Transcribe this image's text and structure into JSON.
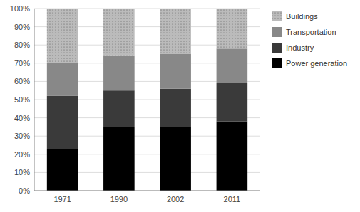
{
  "chart_data": {
    "type": "bar",
    "stacked": true,
    "categories": [
      "1971",
      "1990",
      "2002",
      "2011"
    ],
    "series": [
      {
        "name": "Power generation",
        "color": "#000000",
        "values": [
          23,
          35,
          35,
          38
        ]
      },
      {
        "name": "Industry",
        "color": "#3a3a3a",
        "values": [
          29,
          20,
          21,
          21
        ]
      },
      {
        "name": "Transportation",
        "color": "#888888",
        "values": [
          18,
          19,
          19,
          19
        ]
      },
      {
        "name": "Buildings",
        "color": "#bbbbbb",
        "values": [
          30,
          26,
          25,
          22
        ]
      }
    ],
    "ylim": [
      0,
      100
    ],
    "yticks": [
      {
        "value": 0,
        "label": "0%"
      },
      {
        "value": 10,
        "label": "10%"
      },
      {
        "value": 20,
        "label": "20%"
      },
      {
        "value": 30,
        "label": "30%"
      },
      {
        "value": 40,
        "label": "40%"
      },
      {
        "value": 50,
        "label": "50%"
      },
      {
        "value": 60,
        "label": "60%"
      },
      {
        "value": 70,
        "label": "70%"
      },
      {
        "value": 80,
        "label": "80%"
      },
      {
        "value": 90,
        "label": "90%"
      },
      {
        "value": 100,
        "label": "100%"
      }
    ],
    "grid": true,
    "legend": "right"
  }
}
